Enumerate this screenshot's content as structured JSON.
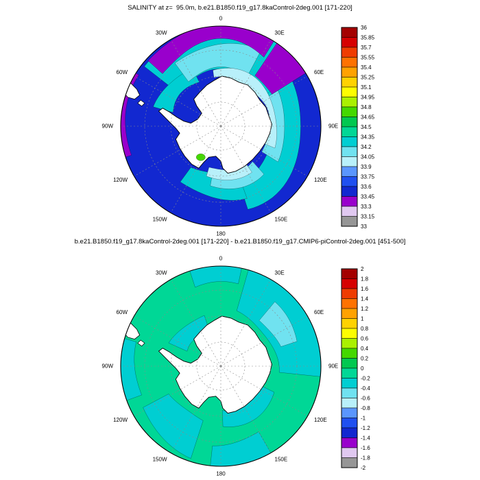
{
  "page": {
    "background": "#ffffff"
  },
  "top_plot": {
    "title": "SALINITY at z=  95.0m, b.e21.B1850.f19_g17.8kaControl-2deg.001 [171-220]"
  },
  "bottom_plot": {
    "title": "b.e21.B1850.f19_g17.8kaControl-2deg.001 [171-220] - b.e21.B1850.f19_g17.CMIP6-piControl-2deg.001 [451-500]"
  },
  "palette_high_to_low": [
    "#a40000",
    "#d60000",
    "#ef3c00",
    "#ff7200",
    "#ffa200",
    "#ffd200",
    "#fdfd00",
    "#aaf000",
    "#44d800",
    "#00c850",
    "#00d796",
    "#00ced2",
    "#70e2f0",
    "#b8f0fa",
    "#5a96ff",
    "#2050f0",
    "#1228d0",
    "#9900cc",
    "#e0c8f0",
    "#969696"
  ],
  "lon_labels": [
    {
      "text": "0",
      "angle_deg": 0
    },
    {
      "text": "30E",
      "angle_deg": 30
    },
    {
      "text": "60E",
      "angle_deg": 60
    },
    {
      "text": "90E",
      "angle_deg": 90
    },
    {
      "text": "120E",
      "angle_deg": 120
    },
    {
      "text": "150E",
      "angle_deg": 150
    },
    {
      "text": "180",
      "angle_deg": 180
    },
    {
      "text": "150W",
      "angle_deg": 210
    },
    {
      "text": "120W",
      "angle_deg": 240
    },
    {
      "text": "90W",
      "angle_deg": 270
    },
    {
      "text": "60W",
      "angle_deg": 300
    },
    {
      "text": "30W",
      "angle_deg": 330
    }
  ],
  "chart_data": [
    {
      "type": "heatmap",
      "projection": "south polar stereographic",
      "title": "SALINITY at z=  95.0m, b.e21.B1850.f19_g17.8kaControl-2deg.001 [171-220]",
      "variable": "SALINITY",
      "depth": "95.0m",
      "case": "b.e21.B1850.f19_g17.8kaControl-2deg.001",
      "years": "[171-220]",
      "colorbar_orientation": "vertical-right",
      "colorbar_levels": [
        36,
        35.85,
        35.7,
        35.55,
        35.4,
        35.25,
        35.1,
        34.95,
        34.8,
        34.65,
        34.5,
        34.35,
        34.2,
        34.05,
        33.9,
        33.75,
        33.6,
        33.45,
        33.3,
        33.15,
        33
      ],
      "field_summary": "Open Southern Ocean mostly deep blue (33.45-33.6); cyan to pale-cyan rings (33.9-34.35) surrounding the Antarctic coast; purple band (33.3-33.45) along the northern rim near 0 deg and along the western rim near South America; small green patch (34.65-34.8) at the coast southwest of the pole; Antarctica shown in white."
    },
    {
      "type": "heatmap",
      "projection": "south polar stereographic",
      "title": "b.e21.B1850.f19_g17.8kaControl-2deg.001 [171-220] - b.e21.B1850.f19_g17.CMIP6-piControl-2deg.001 [451-500]",
      "variable": "SALINITY difference (8kaControl minus CMIP6-piControl)",
      "colorbar_orientation": "vertical-right",
      "colorbar_levels": [
        2,
        1.8,
        1.6,
        1.4,
        1.2,
        1,
        0.8,
        0.6,
        0.4,
        0.2,
        0,
        -0.2,
        -0.4,
        -0.6,
        -0.8,
        -1,
        -1.2,
        -1.4,
        -1.6,
        -1.8,
        -2
      ],
      "field_summary": "Difference field close to zero: mostly green (0 to -0.2) with cyan patches (-0.2 to -0.4) northeast of the continent between 30E and 90E, along the northern, western and southern rims, and in the Ross and Weddell sea sectors; Antarctica shown in white."
    }
  ]
}
